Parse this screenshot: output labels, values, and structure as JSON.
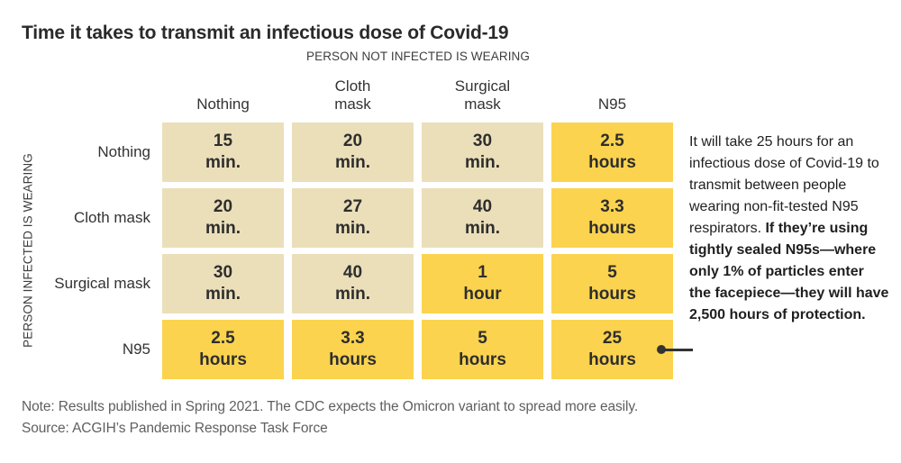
{
  "title": "Time it takes to transmit an infectious dose of Covid-19",
  "matrix": {
    "col_group_label": "PERSON NOT INFECTED IS WEARING",
    "row_group_label": "PERSON INFECTED IS WEARING",
    "col_headers_display": [
      "Nothing",
      "Cloth\nmask",
      "Surgical\nmask",
      "N95"
    ],
    "row_headers": [
      "Nothing",
      "Cloth mask",
      "Surgical mask",
      "N95"
    ]
  },
  "annotation": {
    "normal": "It will take 25 hours for an infectious dose of Covid-19 to transmit between people wearing non-fit-tested N95 respirators. ",
    "bold": "If they’re using tightly sealed N95s—where only 1% of particles enter the facepiece—they will have 2,500 hours of protection."
  },
  "note": "Note: Results published in Spring 2021. The CDC expects the Omicron variant to spread more easily.",
  "source": "Source: ACGIH’s Pandemic Response Task Force",
  "colors": {
    "minutes_cell": "#ebdfba",
    "hours_cell": "#fbd34e",
    "background": "#ffffff",
    "text_dark": "#2e2e2e",
    "text_gray": "#5f5f5f"
  },
  "chart_data": {
    "type": "heatmap",
    "title": "Time it takes to transmit an infectious dose of Covid-19",
    "xlabel": "PERSON NOT INFECTED IS WEARING",
    "ylabel": "PERSON INFECTED IS WEARING",
    "columns": [
      "Nothing",
      "Cloth mask",
      "Surgical mask",
      "N95"
    ],
    "rows": [
      "Nothing",
      "Cloth mask",
      "Surgical mask",
      "N95"
    ],
    "cells_display": [
      [
        "15\nmin.",
        "20\nmin.",
        "30\nmin.",
        "2.5\nhours"
      ],
      [
        "20\nmin.",
        "27\nmin.",
        "40\nmin.",
        "3.3\nhours"
      ],
      [
        "30\nmin.",
        "40\nmin.",
        "1\nhour",
        "5\nhours"
      ],
      [
        "2.5\nhours",
        "3.3\nhours",
        "5\nhours",
        "25\nhours"
      ]
    ],
    "values_minutes": [
      [
        15,
        20,
        30,
        150
      ],
      [
        20,
        27,
        40,
        198
      ],
      [
        30,
        40,
        60,
        300
      ],
      [
        150,
        198,
        300,
        1500
      ]
    ],
    "legend": "off",
    "grid": "off",
    "cell_color_rule": "minute-valued cells beige #ebdfba; hour-valued cells yellow #fbd34e",
    "annotation_target": "25 hours (N95 x N95) cell"
  }
}
